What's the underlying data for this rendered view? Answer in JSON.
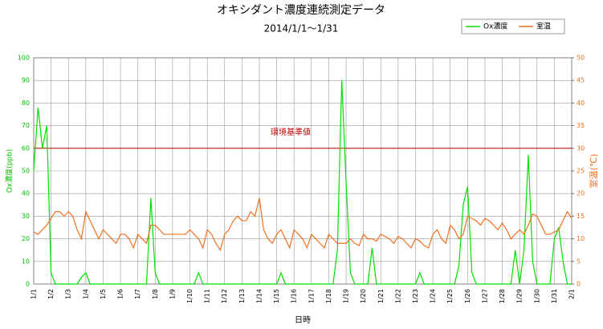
{
  "chart_data": {
    "type": "line",
    "title": "オキシダント濃度連続測定データ",
    "subtitle": "2014/1/1～1/31",
    "xlabel": "日時",
    "ylabel": "Ox濃度(ppb)",
    "y2label": "室温(℃)",
    "grid": true,
    "legend": "top-right",
    "x": [
      0,
      0.25,
      0.5,
      0.75,
      1,
      1.25,
      1.5,
      1.75,
      2,
      2.25,
      2.5,
      2.75,
      3,
      3.25,
      3.5,
      3.75,
      4,
      4.25,
      4.5,
      4.75,
      5,
      5.25,
      5.5,
      5.75,
      6,
      6.25,
      6.5,
      6.75,
      7,
      7.25,
      7.5,
      7.75,
      8,
      8.25,
      8.5,
      8.75,
      9,
      9.25,
      9.5,
      9.75,
      10,
      10.25,
      10.5,
      10.75,
      11,
      11.25,
      11.5,
      11.75,
      12,
      12.25,
      12.5,
      12.75,
      13,
      13.25,
      13.5,
      13.75,
      14,
      14.25,
      14.5,
      14.75,
      15,
      15.25,
      15.5,
      15.75,
      16,
      16.25,
      16.5,
      16.75,
      17,
      17.25,
      17.5,
      17.75,
      18,
      18.25,
      18.5,
      18.75,
      19,
      19.25,
      19.5,
      19.75,
      20,
      20.25,
      20.5,
      20.75,
      21,
      21.25,
      21.5,
      21.75,
      22,
      22.25,
      22.5,
      22.75,
      23,
      23.25,
      23.5,
      23.75,
      24,
      24.25,
      24.5,
      24.75,
      25,
      25.25,
      25.5,
      25.75,
      26,
      26.25,
      26.5,
      26.75,
      27,
      27.25,
      27.5,
      27.75,
      28,
      28.25,
      28.5,
      28.75,
      29,
      29.25,
      29.5,
      29.75,
      30,
      30.25,
      30.5,
      30.75,
      31
    ],
    "series": [
      {
        "name": "Ox濃度",
        "color": "#00e000",
        "axis": "y",
        "values": [
          50,
          78,
          60,
          70,
          5,
          0,
          0,
          0,
          0,
          0,
          0,
          3,
          5,
          0,
          0,
          0,
          0,
          0,
          0,
          0,
          0,
          0,
          0,
          0,
          0,
          0,
          0,
          38,
          5,
          0,
          0,
          0,
          0,
          0,
          0,
          0,
          0,
          0,
          5,
          0,
          0,
          0,
          0,
          0,
          0,
          0,
          0,
          0,
          0,
          0,
          0,
          0,
          0,
          0,
          0,
          0,
          0,
          5,
          0,
          0,
          0,
          0,
          0,
          0,
          0,
          0,
          0,
          0,
          0,
          0,
          15,
          90,
          45,
          5,
          0,
          0,
          0,
          0,
          16,
          0,
          0,
          0,
          0,
          0,
          0,
          0,
          0,
          0,
          0,
          5,
          0,
          0,
          0,
          0,
          0,
          0,
          0,
          0,
          8,
          35,
          43,
          5,
          0,
          0,
          0,
          0,
          0,
          0,
          0,
          0,
          0,
          15,
          0,
          15,
          57,
          10,
          0,
          0,
          0,
          0,
          20,
          25,
          10,
          0,
          0
        ]
      },
      {
        "name": "室温",
        "color": "#f07020",
        "axis": "y2",
        "values": [
          11.5,
          11,
          12,
          13,
          14.5,
          16,
          16,
          15,
          16,
          15,
          12,
          10,
          16,
          14,
          12,
          10,
          12,
          11,
          10,
          9,
          11,
          11,
          10,
          8,
          11,
          10,
          9,
          13,
          13,
          12,
          11,
          11,
          11,
          11,
          11,
          11,
          12,
          11,
          10,
          8,
          12,
          11,
          9,
          7.5,
          11,
          12,
          14,
          15,
          14,
          14,
          16,
          15,
          19,
          12,
          10,
          9,
          11,
          12,
          10,
          8,
          12,
          11,
          10,
          8,
          11,
          10,
          9,
          8,
          11,
          10,
          9,
          9,
          9,
          10,
          9,
          8.5,
          11,
          10,
          10,
          9.5,
          11,
          10.5,
          10,
          9,
          10.5,
          10,
          9,
          8,
          10,
          9.5,
          8.5,
          8,
          11,
          12,
          10,
          9,
          13,
          12,
          10,
          11,
          15,
          14.5,
          14,
          13,
          14.5,
          14,
          13,
          12,
          13.5,
          12,
          10,
          11,
          12,
          11,
          13,
          15.5,
          15,
          13,
          11,
          11,
          11.5,
          12,
          14,
          16,
          14.5
        ]
      }
    ],
    "reference_line": {
      "value": 60,
      "label": "環境基準値",
      "color": "#c00000"
    },
    "xlim": [
      0,
      31
    ],
    "xticks": [
      {
        "value": 0,
        "label": "1/1"
      },
      {
        "value": 1,
        "label": "1/2"
      },
      {
        "value": 2,
        "label": "1/3"
      },
      {
        "value": 3,
        "label": "1/4"
      },
      {
        "value": 4,
        "label": "1/5"
      },
      {
        "value": 5,
        "label": "1/6"
      },
      {
        "value": 6,
        "label": "1/7"
      },
      {
        "value": 7,
        "label": "1/8"
      },
      {
        "value": 8,
        "label": "1/9"
      },
      {
        "value": 9,
        "label": "1/10"
      },
      {
        "value": 10,
        "label": "1/11"
      },
      {
        "value": 11,
        "label": "1/12"
      },
      {
        "value": 12,
        "label": "1/13"
      },
      {
        "value": 13,
        "label": "1/14"
      },
      {
        "value": 14,
        "label": "1/15"
      },
      {
        "value": 15,
        "label": "1/16"
      },
      {
        "value": 16,
        "label": "1/17"
      },
      {
        "value": 17,
        "label": "1/18"
      },
      {
        "value": 18,
        "label": "1/19"
      },
      {
        "value": 19,
        "label": "1/20"
      },
      {
        "value": 20,
        "label": "1/21"
      },
      {
        "value": 21,
        "label": "1/22"
      },
      {
        "value": 22,
        "label": "1/23"
      },
      {
        "value": 23,
        "label": "1/24"
      },
      {
        "value": 24,
        "label": "1/25"
      },
      {
        "value": 25,
        "label": "1/26"
      },
      {
        "value": 26,
        "label": "1/27"
      },
      {
        "value": 27,
        "label": "1/28"
      },
      {
        "value": 28,
        "label": "1/29"
      },
      {
        "value": 29,
        "label": "1/30"
      },
      {
        "value": 30,
        "label": "1/31"
      },
      {
        "value": 31,
        "label": "2/1"
      }
    ],
    "ylim": [
      0,
      100
    ],
    "yticks": [
      0,
      10,
      20,
      30,
      40,
      50,
      60,
      70,
      80,
      90,
      100
    ],
    "y2lim": [
      0,
      50
    ],
    "y2ticks": [
      0,
      5,
      10,
      15,
      20,
      25,
      30,
      35,
      40,
      45,
      50
    ]
  }
}
